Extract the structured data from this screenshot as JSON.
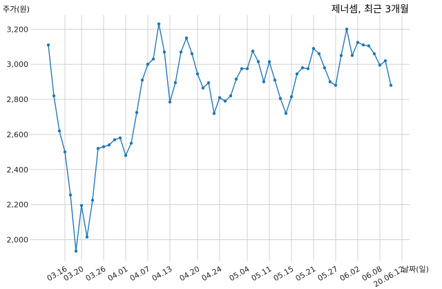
{
  "chart_data": {
    "type": "line",
    "title": "제너셈, 최근 3개월",
    "ylabel": "주가(원)",
    "xlabel": "날짜(일)",
    "ylim": [
      1880,
      3280
    ],
    "yticks": [
      2000,
      2200,
      2400,
      2600,
      2800,
      3000,
      3200
    ],
    "ytick_labels": [
      "2,000",
      "2,200",
      "2,400",
      "2,600",
      "2,800",
      "3,000",
      "3,200"
    ],
    "xtick_labels": [
      "03.16",
      "03.20",
      "03.26",
      "04.01",
      "04.07",
      "04.13",
      "04.20",
      "04.24",
      "05.04",
      "05.11",
      "05.15",
      "05.21",
      "05.27",
      "06.02",
      "06.08",
      "20.06.12"
    ],
    "xtick_index": [
      3,
      6,
      10,
      14,
      18,
      22,
      27,
      31,
      36,
      40,
      44,
      48,
      52,
      56,
      60,
      64
    ],
    "grid": true,
    "color": "#1f77b4",
    "values": [
      3110,
      2820,
      2620,
      2500,
      2255,
      1935,
      2195,
      2015,
      2225,
      2520,
      2530,
      2540,
      2570,
      2580,
      2480,
      2550,
      2725,
      2910,
      3000,
      3030,
      3230,
      3070,
      2785,
      2895,
      3070,
      3150,
      3060,
      2945,
      2865,
      2895,
      2720,
      2810,
      2790,
      2820,
      2915,
      2975,
      2975,
      3075,
      3015,
      2900,
      3015,
      2910,
      2805,
      2720,
      2815,
      2945,
      2980,
      2975,
      3090,
      3060,
      2980,
      2900,
      2880,
      3050,
      3200,
      3050,
      3125,
      3110,
      3105,
      3060,
      2995,
      3020,
      2880
    ]
  }
}
